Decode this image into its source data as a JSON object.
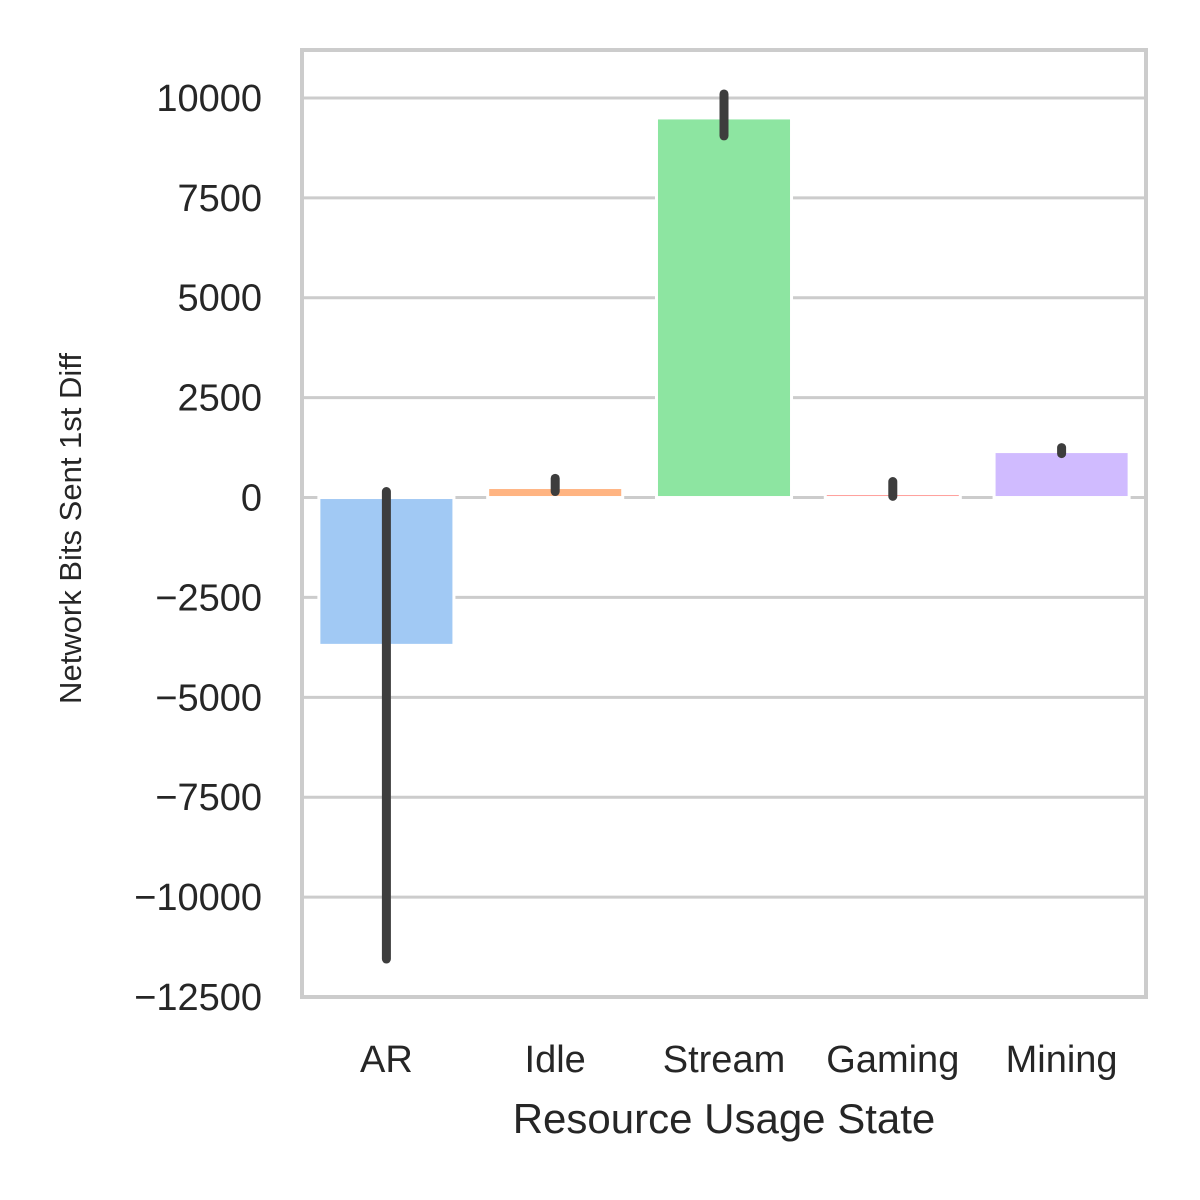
{
  "chart_data": {
    "type": "bar",
    "title": "",
    "xlabel": "Resource Usage State",
    "ylabel": "Network Bits Sent 1st Diff",
    "categories": [
      "AR",
      "Idle",
      "Stream",
      "Gaming",
      "Mining"
    ],
    "values": [
      -3700,
      250,
      9500,
      100,
      1150
    ],
    "error_bars": [
      {
        "low": -11550,
        "high": 150
      },
      {
        "low": 150,
        "high": 480
      },
      {
        "low": 9050,
        "high": 10100
      },
      {
        "low": 30,
        "high": 400
      },
      {
        "low": 1100,
        "high": 1250
      }
    ],
    "colors": [
      "#a1c9f4",
      "#ffb482",
      "#8de5a1",
      "#ff9f9b",
      "#d0bbff"
    ],
    "error_color": "#3d3d3d",
    "ylim": [
      -12500,
      11200
    ],
    "yticks": [
      10000,
      7500,
      5000,
      2500,
      0,
      -2500,
      -5000,
      -7500,
      -10000,
      -12500
    ],
    "ytick_labels": [
      "10000",
      "7500",
      "5000",
      "2500",
      "0",
      "−2500",
      "−5000",
      "−7500",
      "−10000",
      "−12500"
    ],
    "grid": true,
    "grid_color": "#cccccc"
  }
}
